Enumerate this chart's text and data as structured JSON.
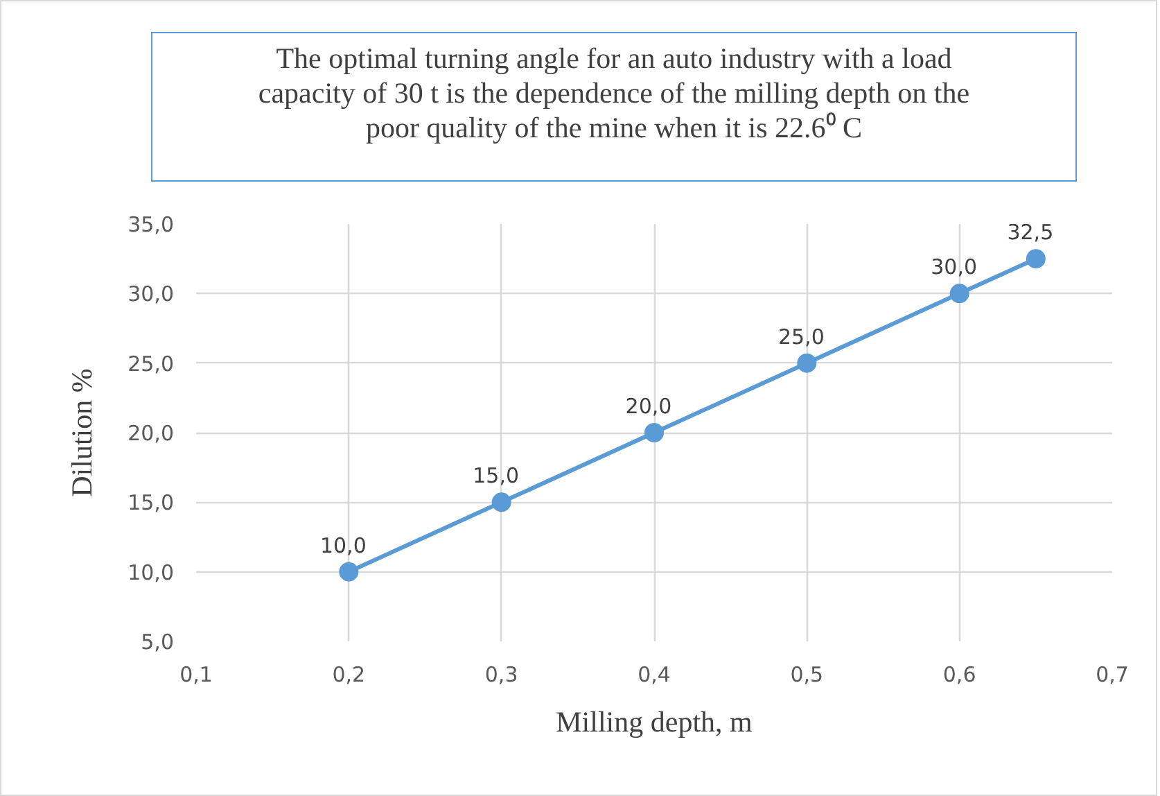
{
  "chart_data": {
    "type": "line",
    "title": "The optimal turning angle for an auto industry with a load capacity of 30 t is the dependence of the milling depth on the poor quality of the mine when it is 22.6⁰ C",
    "xlabel": "Milling depth, m",
    "ylabel": "Dilution %",
    "x": [
      0.2,
      0.3,
      0.4,
      0.5,
      0.6,
      0.65
    ],
    "series": [
      {
        "color": "#5b9bd5",
        "values": [
          10.0,
          15.0,
          20.0,
          25.0,
          30.0,
          32.5
        ],
        "value_labels": [
          "10,0",
          "15,0",
          "20,0",
          "25,0",
          "30,0",
          "32,5"
        ]
      }
    ],
    "xlim": [
      0.1,
      0.7
    ],
    "xticks": [
      {
        "value": 0.1,
        "label": "0,1"
      },
      {
        "value": 0.2,
        "label": "0,2"
      },
      {
        "value": 0.3,
        "label": "0,3"
      },
      {
        "value": 0.4,
        "label": "0,4"
      },
      {
        "value": 0.5,
        "label": "0,5"
      },
      {
        "value": 0.6,
        "label": "0,6"
      },
      {
        "value": 0.7,
        "label": "0,7"
      }
    ],
    "ylim": [
      5,
      35
    ],
    "yticks": [
      {
        "value": 5,
        "label": "5,0"
      },
      {
        "value": 10,
        "label": "10,0"
      },
      {
        "value": 15,
        "label": "15,0"
      },
      {
        "value": 20,
        "label": "20,0"
      },
      {
        "value": 25,
        "label": "25,0"
      },
      {
        "value": 30,
        "label": "30,0"
      },
      {
        "value": 35,
        "label": "35,0"
      }
    ],
    "grid": true,
    "marker": "circle",
    "line_style": "solid"
  }
}
